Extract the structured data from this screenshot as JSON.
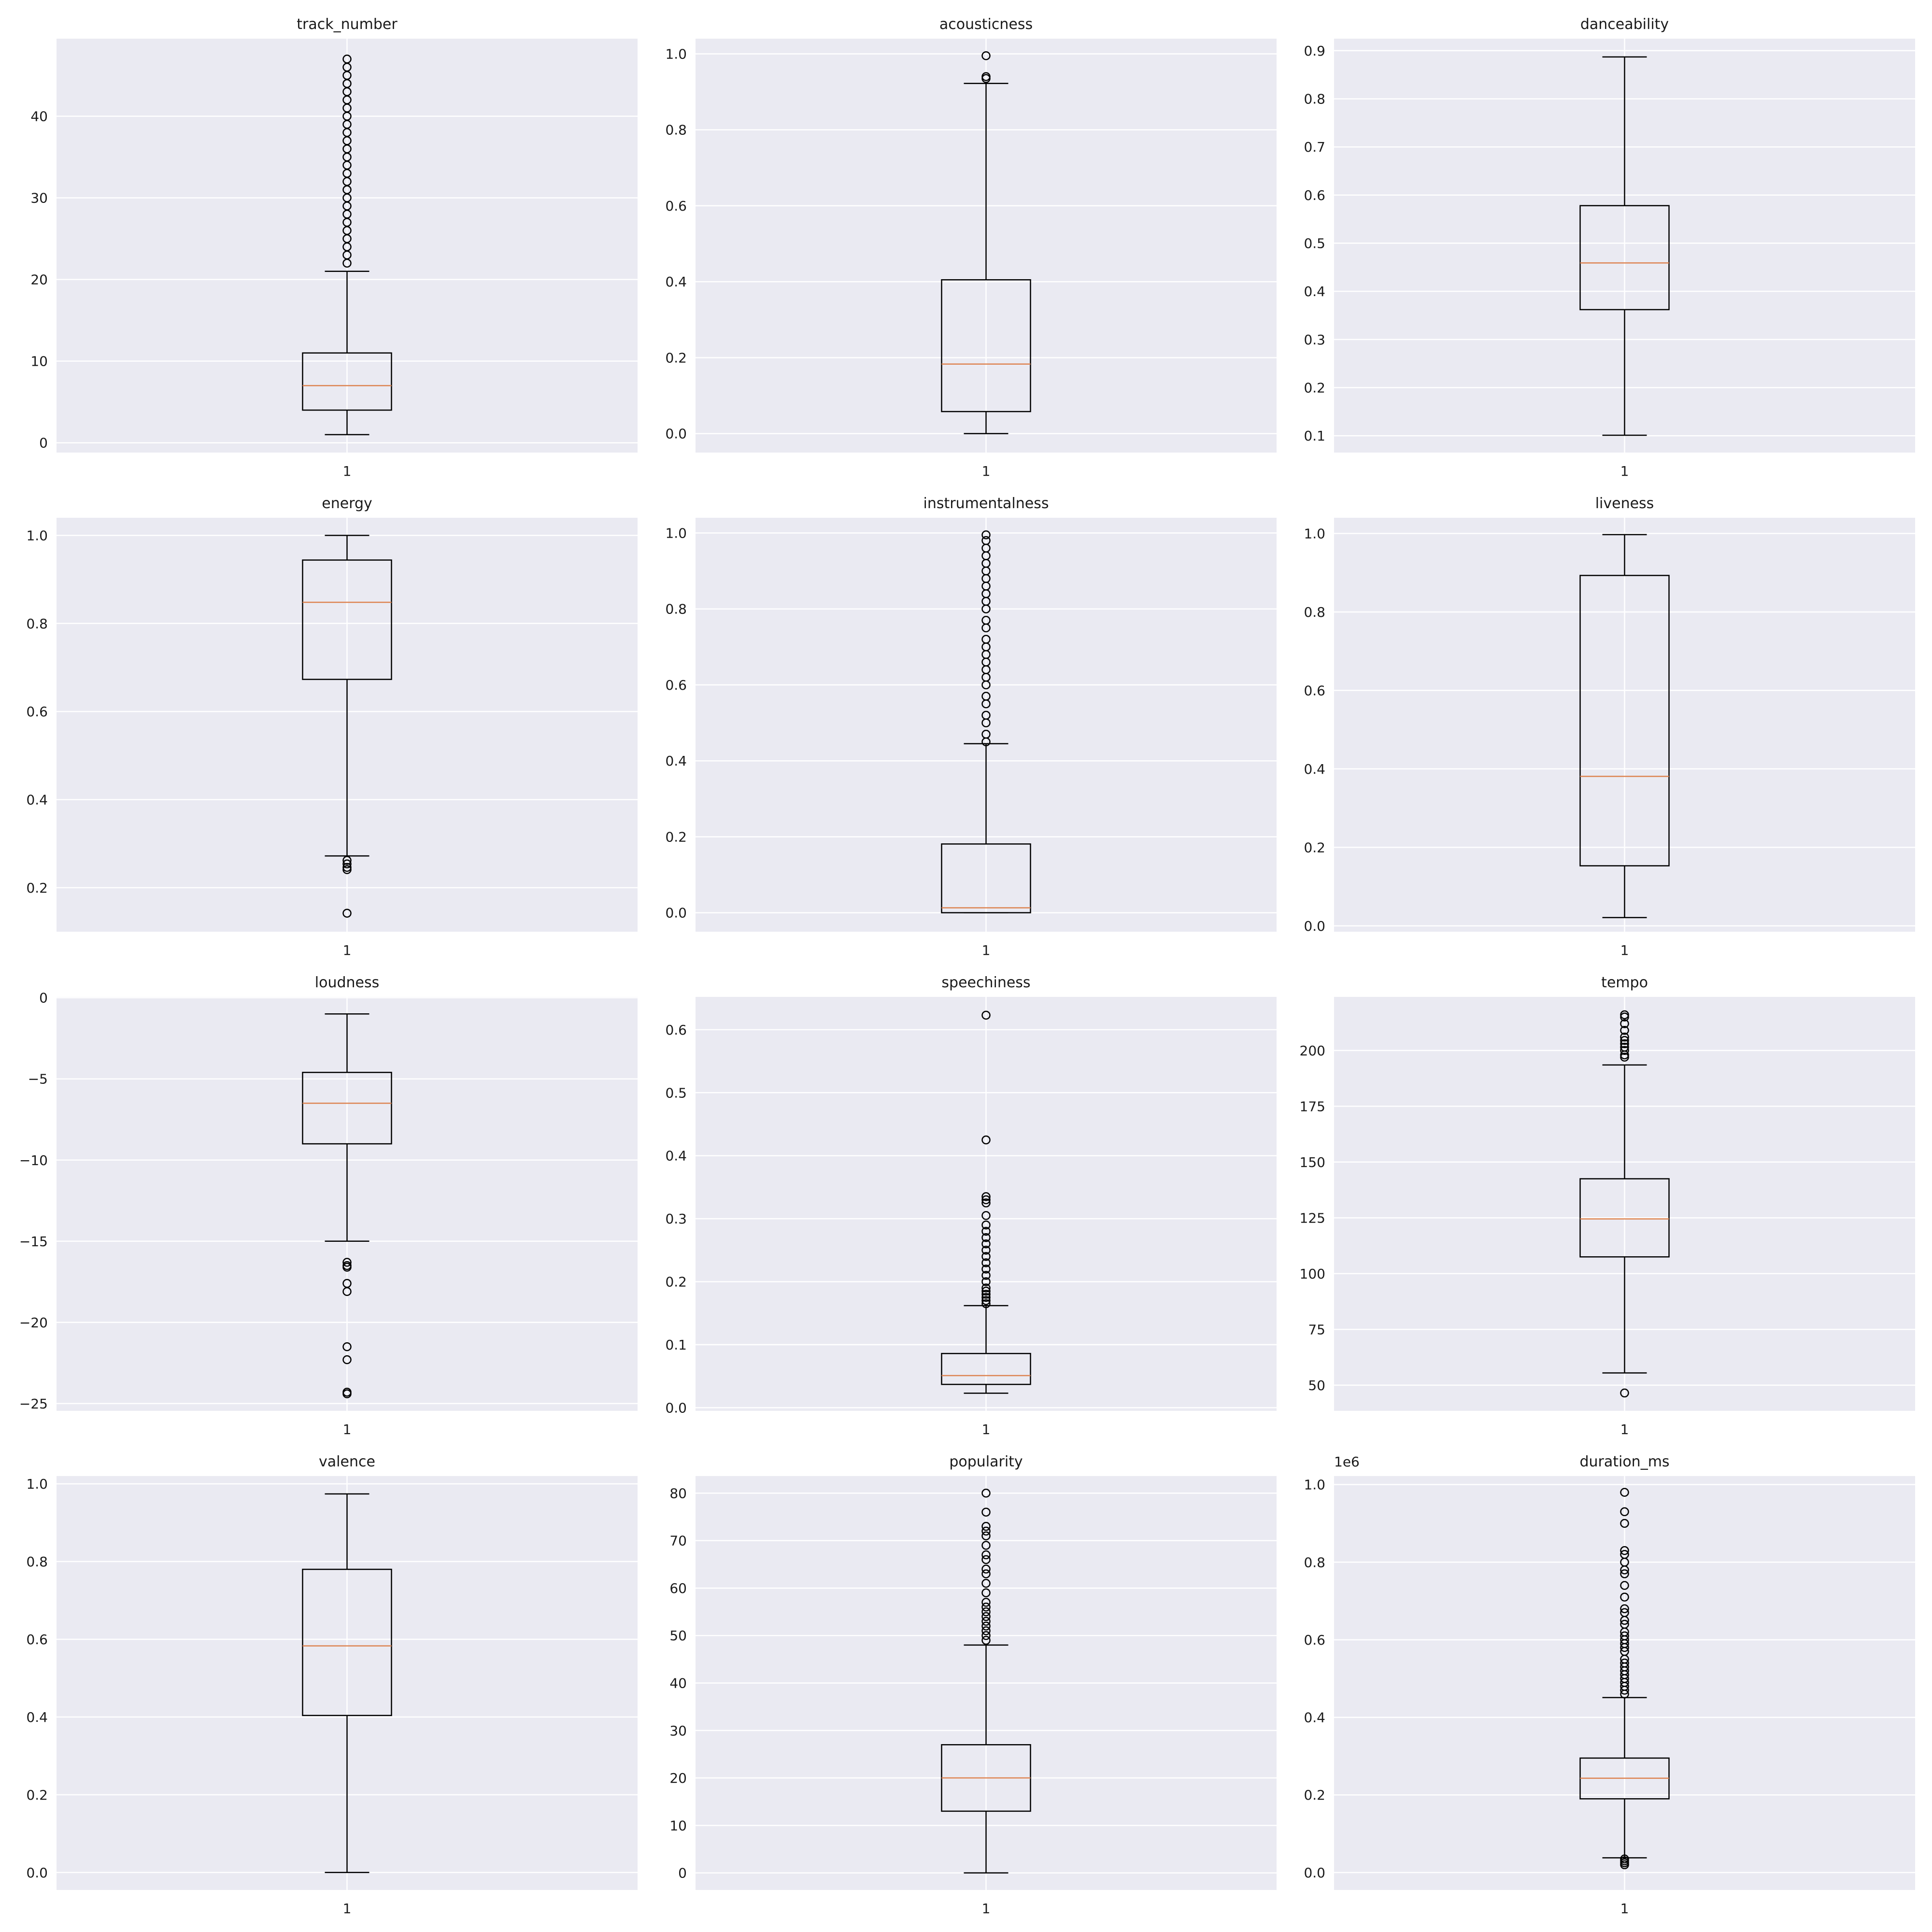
{
  "chart_data": [
    {
      "type": "box",
      "title": "track_number",
      "categories": [
        "1"
      ],
      "ylim": [
        -1.2,
        49.5
      ],
      "yticks": [
        0,
        10,
        20,
        30,
        40
      ],
      "ytick_labels": [
        "0",
        "10",
        "20",
        "30",
        "40"
      ],
      "whisker_low": 1,
      "q1": 4,
      "median": 7,
      "q3": 11,
      "whisker_high": 21,
      "outliers": [
        22,
        23,
        24,
        25,
        26,
        27,
        28,
        29,
        30,
        31,
        32,
        33,
        34,
        35,
        36,
        37,
        38,
        39,
        40,
        41,
        42,
        43,
        44,
        45,
        46,
        47
      ]
    },
    {
      "type": "box",
      "title": "acousticness",
      "categories": [
        "1"
      ],
      "ylim": [
        -0.05,
        1.04
      ],
      "yticks": [
        0,
        0.2,
        0.4,
        0.6,
        0.8,
        1.0
      ],
      "ytick_labels": [
        "0.0",
        "0.2",
        "0.4",
        "0.6",
        "0.8",
        "1.0"
      ],
      "whisker_low": 0.0,
      "q1": 0.058,
      "median": 0.183,
      "q3": 0.405,
      "whisker_high": 0.922,
      "outliers": [
        0.935,
        0.94,
        0.995
      ]
    },
    {
      "type": "box",
      "title": "danceability",
      "categories": [
        "1"
      ],
      "ylim": [
        0.065,
        0.925
      ],
      "yticks": [
        0.1,
        0.2,
        0.3,
        0.4,
        0.5,
        0.6,
        0.7,
        0.8,
        0.9
      ],
      "ytick_labels": [
        "0.1",
        "0.2",
        "0.3",
        "0.4",
        "0.5",
        "0.6",
        "0.7",
        "0.8",
        "0.9"
      ],
      "whisker_low": 0.101,
      "q1": 0.362,
      "median": 0.459,
      "q3": 0.578,
      "whisker_high": 0.887,
      "outliers": []
    },
    {
      "type": "box",
      "title": "energy",
      "categories": [
        "1"
      ],
      "ylim": [
        0.1,
        1.04
      ],
      "yticks": [
        0.2,
        0.4,
        0.6,
        0.8,
        1.0
      ],
      "ytick_labels": [
        "0.2",
        "0.4",
        "0.6",
        "0.8",
        "1.0"
      ],
      "whisker_low": 0.272,
      "q1": 0.673,
      "median": 0.848,
      "q3": 0.944,
      "whisker_high": 1.0,
      "outliers": [
        0.262,
        0.254,
        0.246,
        0.241,
        0.142
      ]
    },
    {
      "type": "box",
      "title": "instrumentalness",
      "categories": [
        "1"
      ],
      "ylim": [
        -0.05,
        1.04
      ],
      "yticks": [
        0,
        0.2,
        0.4,
        0.6,
        0.8,
        1.0
      ],
      "ytick_labels": [
        "0.0",
        "0.2",
        "0.4",
        "0.6",
        "0.8",
        "1.0"
      ],
      "whisker_low": 0.0,
      "q1": 0.0,
      "median": 0.013,
      "q3": 0.181,
      "whisker_high": 0.445,
      "outliers": [
        0.45,
        0.47,
        0.5,
        0.52,
        0.55,
        0.57,
        0.6,
        0.62,
        0.64,
        0.66,
        0.68,
        0.7,
        0.72,
        0.75,
        0.77,
        0.8,
        0.82,
        0.84,
        0.86,
        0.88,
        0.9,
        0.92,
        0.94,
        0.96,
        0.98,
        0.995
      ]
    },
    {
      "type": "box",
      "title": "liveness",
      "categories": [
        "1"
      ],
      "ylim": [
        -0.015,
        1.04
      ],
      "yticks": [
        0,
        0.2,
        0.4,
        0.6,
        0.8,
        1.0
      ],
      "ytick_labels": [
        "0.0",
        "0.2",
        "0.4",
        "0.6",
        "0.8",
        "1.0"
      ],
      "whisker_low": 0.021,
      "q1": 0.153,
      "median": 0.381,
      "q3": 0.893,
      "whisker_high": 0.997,
      "outliers": []
    },
    {
      "type": "box",
      "title": "loudness",
      "categories": [
        "1"
      ],
      "ylim": [
        -25.45,
        0.05
      ],
      "yticks": [
        0,
        -5,
        -10,
        -15,
        -20,
        -25
      ],
      "ytick_labels": [
        "0",
        "−5",
        "−10",
        "−15",
        "−20",
        "−25"
      ],
      "whisker_low": -15.0,
      "q1": -9.0,
      "median": -6.5,
      "q3": -4.6,
      "whisker_high": -1.0,
      "outliers": [
        -16.3,
        -16.5,
        -16.6,
        -17.6,
        -18.1,
        -21.5,
        -22.3,
        -24.3,
        -24.4
      ]
    },
    {
      "type": "box",
      "title": "speechiness",
      "categories": [
        "1"
      ],
      "ylim": [
        -0.005,
        0.652
      ],
      "yticks": [
        0,
        0.1,
        0.2,
        0.3,
        0.4,
        0.5,
        0.6
      ],
      "ytick_labels": [
        "0.0",
        "0.1",
        "0.2",
        "0.3",
        "0.4",
        "0.5",
        "0.6"
      ],
      "whisker_low": 0.023,
      "q1": 0.037,
      "median": 0.051,
      "q3": 0.086,
      "whisker_high": 0.162,
      "outliers": [
        0.165,
        0.17,
        0.175,
        0.18,
        0.185,
        0.19,
        0.2,
        0.21,
        0.22,
        0.23,
        0.24,
        0.25,
        0.26,
        0.27,
        0.28,
        0.29,
        0.305,
        0.325,
        0.33,
        0.335,
        0.425,
        0.623
      ]
    },
    {
      "type": "box",
      "title": "tempo",
      "categories": [
        "1"
      ],
      "ylim": [
        38.5,
        224
      ],
      "yticks": [
        50,
        75,
        100,
        125,
        150,
        175,
        200
      ],
      "ytick_labels": [
        "50",
        "75",
        "100",
        "125",
        "150",
        "175",
        "200"
      ],
      "whisker_low": 55.5,
      "q1": 107.5,
      "median": 124.5,
      "q3": 142.5,
      "whisker_high": 193.5,
      "outliers": [
        46.5,
        197,
        198,
        200,
        201.5,
        203,
        204.5,
        206,
        209,
        212,
        215,
        216
      ]
    },
    {
      "type": "box",
      "title": "valence",
      "categories": [
        "1"
      ],
      "ylim": [
        -0.045,
        1.02
      ],
      "yticks": [
        0,
        0.2,
        0.4,
        0.6,
        0.8,
        1.0
      ],
      "ytick_labels": [
        "0.0",
        "0.2",
        "0.4",
        "0.6",
        "0.8",
        "1.0"
      ],
      "whisker_low": 0.0,
      "q1": 0.404,
      "median": 0.583,
      "q3": 0.78,
      "whisker_high": 0.974,
      "outliers": []
    },
    {
      "type": "box",
      "title": "popularity",
      "categories": [
        "1"
      ],
      "ylim": [
        -3.6,
        83.6
      ],
      "yticks": [
        0,
        10,
        20,
        30,
        40,
        50,
        60,
        70,
        80
      ],
      "ytick_labels": [
        "0",
        "10",
        "20",
        "30",
        "40",
        "50",
        "60",
        "70",
        "80"
      ],
      "whisker_low": 0,
      "q1": 13,
      "median": 20,
      "q3": 27,
      "whisker_high": 48,
      "outliers": [
        49,
        50,
        51,
        52,
        53,
        54,
        55,
        56,
        57,
        59,
        61,
        63,
        64,
        66,
        67,
        69,
        71,
        72,
        73,
        76,
        80
      ]
    },
    {
      "type": "box",
      "title": "duration_ms",
      "categories": [
        "1"
      ],
      "offset_text": "1e6",
      "ylim": [
        -0.045,
        1.022
      ],
      "yticks": [
        0,
        0.2,
        0.4,
        0.6,
        0.8,
        1.0
      ],
      "ytick_labels": [
        "0.0",
        "0.2",
        "0.4",
        "0.6",
        "0.8",
        "1.0"
      ],
      "whisker_low": 0.038,
      "q1": 0.19,
      "median": 0.243,
      "q3": 0.295,
      "whisker_high": 0.451,
      "outliers": [
        0.02,
        0.025,
        0.03,
        0.035,
        0.46,
        0.47,
        0.48,
        0.49,
        0.5,
        0.51,
        0.52,
        0.53,
        0.54,
        0.55,
        0.57,
        0.58,
        0.59,
        0.6,
        0.61,
        0.62,
        0.64,
        0.65,
        0.67,
        0.68,
        0.71,
        0.74,
        0.77,
        0.78,
        0.8,
        0.82,
        0.83,
        0.9,
        0.93,
        0.98
      ]
    }
  ],
  "colors": {
    "plot_background": "#eaeaf2",
    "grid": "#ffffff",
    "box_line": "#000000",
    "median": "#dd8452",
    "text": "#1a1a1a"
  }
}
